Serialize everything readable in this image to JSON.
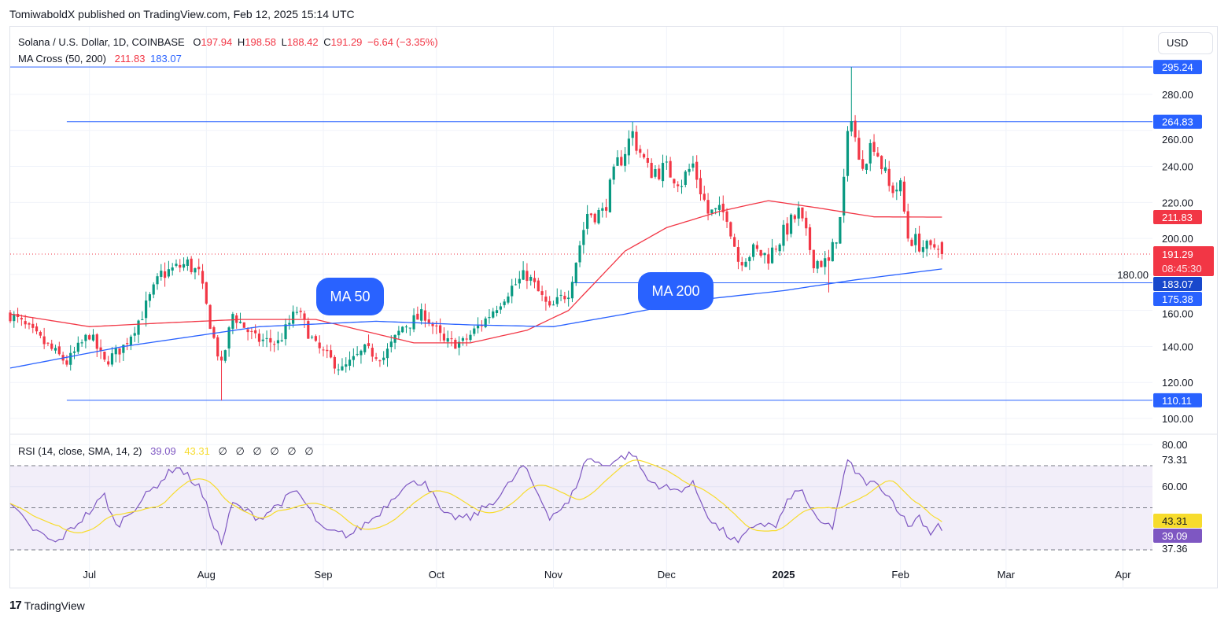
{
  "header": {
    "published": "TomiwaboldX published on TradingView.com, Feb 12, 2025 15:14 UTC"
  },
  "legend": {
    "symbol": "Solana / U.S. Dollar, 1D, COINBASE",
    "o_label": "O",
    "o": "197.94",
    "h_label": "H",
    "h": "198.58",
    "l_label": "L",
    "l": "188.42",
    "c_label": "C",
    "c": "191.29",
    "change": "−6.64 (−3.35%)",
    "ma_name": "MA Cross (50, 200)",
    "ma50": "211.83",
    "ma200": "183.07",
    "rsi_name": "RSI (14, close, SMA, 14, 2)",
    "rsi": "39.09",
    "rsi_sma": "43.31",
    "rsi_extra": [
      "∅",
      "∅",
      "∅",
      "∅",
      "∅",
      "∅"
    ]
  },
  "currency": "USD",
  "annotations": {
    "ma50": "MA 50",
    "ma200": "MA 200"
  },
  "footer": {
    "logo_mark": "17",
    "logo": "TradingView"
  },
  "colors": {
    "up": "#089981",
    "down": "#f23645",
    "ma50": "#f23645",
    "ma200": "#2962ff",
    "level": "#2962ff",
    "rsi": "#7e57c2",
    "rsi_sma": "#f7dc2d",
    "annotation": "#2962ff"
  },
  "chart_data": {
    "type": "candlestick",
    "title": "Solana / U.S. Dollar, 1D, COINBASE",
    "price_ticks": [
      "280.00",
      "260.00",
      "240.00",
      "220.00",
      "200.00",
      "180.00",
      "160.00",
      "140.00",
      "120.00",
      "100.00"
    ],
    "price_tick_values": [
      280,
      260,
      240,
      220,
      200,
      180,
      160,
      140,
      120,
      100
    ],
    "time_ticks": [
      {
        "label": "Jul",
        "date": "2024-07-01",
        "bold": false
      },
      {
        "label": "Aug",
        "date": "2024-08-01",
        "bold": false
      },
      {
        "label": "Sep",
        "date": "2024-09-01",
        "bold": false
      },
      {
        "label": "Oct",
        "date": "2024-10-01",
        "bold": false
      },
      {
        "label": "Nov",
        "date": "2024-11-01",
        "bold": false
      },
      {
        "label": "Dec",
        "date": "2024-12-01",
        "bold": false
      },
      {
        "label": "2025",
        "date": "2025-01-01",
        "bold": true
      },
      {
        "label": "Feb",
        "date": "2025-02-01",
        "bold": false
      },
      {
        "label": "Mar",
        "date": "2025-03-01",
        "bold": false
      },
      {
        "label": "Apr",
        "date": "2025-04-01",
        "bold": false
      }
    ],
    "levels": [
      {
        "value": 295.24,
        "label": "295.24",
        "from": "2024-06-10"
      },
      {
        "value": 264.83,
        "label": "264.83",
        "from": "2024-06-25"
      },
      {
        "value": 175.38,
        "label": "175.38",
        "from": "2024-11-06"
      },
      {
        "value": 110.11,
        "label": "110.11",
        "from": "2024-06-25"
      }
    ],
    "last_price": {
      "value": 191.29,
      "label": "191.29",
      "countdown": "08:45:30"
    },
    "ma50_last": {
      "value": 211.83,
      "label": "211.83"
    },
    "ma200_last": {
      "value": 183.07,
      "label": "183.07"
    },
    "last_ohlc": {
      "open": 197.94,
      "high": 198.58,
      "low": 188.42,
      "close": 191.29
    },
    "extremes": [
      {
        "date": "2024-08-05",
        "low": 110.11
      },
      {
        "date": "2025-01-19",
        "high": 295.24
      },
      {
        "date": "2024-11-22",
        "high": 264.83
      },
      {
        "date": "2025-01-13",
        "low": 170
      }
    ],
    "close_anchors": [
      [
        "2024-06-10",
        158
      ],
      [
        "2024-06-20",
        140
      ],
      [
        "2024-06-25",
        131
      ],
      [
        "2024-07-01",
        147
      ],
      [
        "2024-07-05",
        131
      ],
      [
        "2024-07-10",
        140
      ],
      [
        "2024-07-15",
        158
      ],
      [
        "2024-07-20",
        180
      ],
      [
        "2024-07-27",
        186
      ],
      [
        "2024-07-30",
        180
      ],
      [
        "2024-08-03",
        144
      ],
      [
        "2024-08-05",
        129
      ],
      [
        "2024-08-08",
        158
      ],
      [
        "2024-08-14",
        144
      ],
      [
        "2024-08-20",
        142
      ],
      [
        "2024-08-25",
        160
      ],
      [
        "2024-08-30",
        140
      ],
      [
        "2024-09-06",
        127
      ],
      [
        "2024-09-12",
        138
      ],
      [
        "2024-09-17",
        134
      ],
      [
        "2024-09-22",
        151
      ],
      [
        "2024-09-28",
        158
      ],
      [
        "2024-10-03",
        142
      ],
      [
        "2024-10-08",
        142
      ],
      [
        "2024-10-14",
        155
      ],
      [
        "2024-10-20",
        171
      ],
      [
        "2024-10-25",
        180
      ],
      [
        "2024-10-31",
        160
      ],
      [
        "2024-11-05",
        171
      ],
      [
        "2024-11-10",
        214
      ],
      [
        "2024-11-14",
        214
      ],
      [
        "2024-11-18",
        241
      ],
      [
        "2024-11-22",
        258
      ],
      [
        "2024-11-26",
        238
      ],
      [
        "2024-12-01",
        238
      ],
      [
        "2024-12-05",
        232
      ],
      [
        "2024-12-08",
        241
      ],
      [
        "2024-12-12",
        214
      ],
      [
        "2024-12-17",
        214
      ],
      [
        "2024-12-20",
        188
      ],
      [
        "2024-12-24",
        193
      ],
      [
        "2024-12-28",
        190
      ],
      [
        "2025-01-02",
        206
      ],
      [
        "2025-01-05",
        214
      ],
      [
        "2025-01-09",
        188
      ],
      [
        "2025-01-13",
        186
      ],
      [
        "2025-01-16",
        210
      ],
      [
        "2025-01-18",
        254
      ],
      [
        "2025-01-19",
        271
      ],
      [
        "2025-01-21",
        241
      ],
      [
        "2025-01-25",
        254
      ],
      [
        "2025-01-29",
        228
      ],
      [
        "2025-02-01",
        228
      ],
      [
        "2025-02-03",
        201
      ],
      [
        "2025-02-06",
        197
      ],
      [
        "2025-02-09",
        193
      ],
      [
        "2025-02-11",
        198
      ],
      [
        "2025-02-12",
        191.29
      ]
    ],
    "ma50_anchors": [
      [
        "2024-06-10",
        158
      ],
      [
        "2024-07-01",
        151
      ],
      [
        "2024-07-20",
        153
      ],
      [
        "2024-08-10",
        155
      ],
      [
        "2024-08-30",
        155
      ],
      [
        "2024-09-15",
        147
      ],
      [
        "2024-09-25",
        142
      ],
      [
        "2024-10-10",
        142
      ],
      [
        "2024-10-25",
        149
      ],
      [
        "2024-11-05",
        160
      ],
      [
        "2024-11-20",
        193
      ],
      [
        "2024-12-01",
        206
      ],
      [
        "2024-12-15",
        215
      ],
      [
        "2024-12-28",
        221
      ],
      [
        "2025-01-10",
        217
      ],
      [
        "2025-01-25",
        212
      ],
      [
        "2025-02-12",
        211.83
      ]
    ],
    "ma200_anchors": [
      [
        "2024-06-10",
        128
      ],
      [
        "2024-07-10",
        140
      ],
      [
        "2024-08-15",
        151
      ],
      [
        "2024-09-15",
        154
      ],
      [
        "2024-10-10",
        152
      ],
      [
        "2024-11-01",
        151
      ],
      [
        "2024-11-20",
        158
      ],
      [
        "2024-12-10",
        166
      ],
      [
        "2025-01-01",
        171
      ],
      [
        "2025-01-20",
        177
      ],
      [
        "2025-02-12",
        183.07
      ]
    ],
    "rsi": {
      "ticks": [
        "80.00",
        "73.31",
        "60.00",
        "37.36"
      ],
      "tick_values": [
        80,
        73.31,
        60,
        37.36
      ],
      "bands": [
        70,
        50,
        30
      ],
      "last": {
        "value": 39.09,
        "label": "39.09"
      },
      "sma_last": {
        "value": 43.31,
        "label": "43.31"
      },
      "anchors": [
        [
          "2024-06-10",
          52
        ],
        [
          "2024-06-15",
          41
        ],
        [
          "2024-06-22",
          33
        ],
        [
          "2024-07-01",
          48
        ],
        [
          "2024-07-05",
          56
        ],
        [
          "2024-07-08",
          41
        ],
        [
          "2024-07-15",
          54
        ],
        [
          "2024-07-20",
          63
        ],
        [
          "2024-07-24",
          70
        ],
        [
          "2024-07-30",
          60
        ],
        [
          "2024-08-05",
          33
        ],
        [
          "2024-08-08",
          52
        ],
        [
          "2024-08-15",
          45
        ],
        [
          "2024-08-25",
          58
        ],
        [
          "2024-09-01",
          39
        ],
        [
          "2024-09-08",
          37
        ],
        [
          "2024-09-15",
          46
        ],
        [
          "2024-09-22",
          60
        ],
        [
          "2024-09-28",
          63
        ],
        [
          "2024-10-03",
          46
        ],
        [
          "2024-10-10",
          45
        ],
        [
          "2024-10-18",
          56
        ],
        [
          "2024-10-24",
          70
        ],
        [
          "2024-10-31",
          46
        ],
        [
          "2024-11-05",
          52
        ],
        [
          "2024-11-10",
          74
        ],
        [
          "2024-11-14",
          70
        ],
        [
          "2024-11-22",
          76
        ],
        [
          "2024-11-26",
          63
        ],
        [
          "2024-12-03",
          58
        ],
        [
          "2024-12-08",
          61
        ],
        [
          "2024-12-13",
          43
        ],
        [
          "2024-12-20",
          33
        ],
        [
          "2024-12-25",
          43
        ],
        [
          "2024-12-30",
          41
        ],
        [
          "2025-01-03",
          56
        ],
        [
          "2025-01-06",
          58
        ],
        [
          "2025-01-10",
          43
        ],
        [
          "2025-01-14",
          41
        ],
        [
          "2025-01-18",
          72
        ],
        [
          "2025-01-22",
          63
        ],
        [
          "2025-01-27",
          60
        ],
        [
          "2025-02-01",
          48
        ],
        [
          "2025-02-03",
          41
        ],
        [
          "2025-02-06",
          46
        ],
        [
          "2025-02-09",
          38
        ],
        [
          "2025-02-11",
          43
        ],
        [
          "2025-02-12",
          39.09
        ]
      ]
    }
  }
}
